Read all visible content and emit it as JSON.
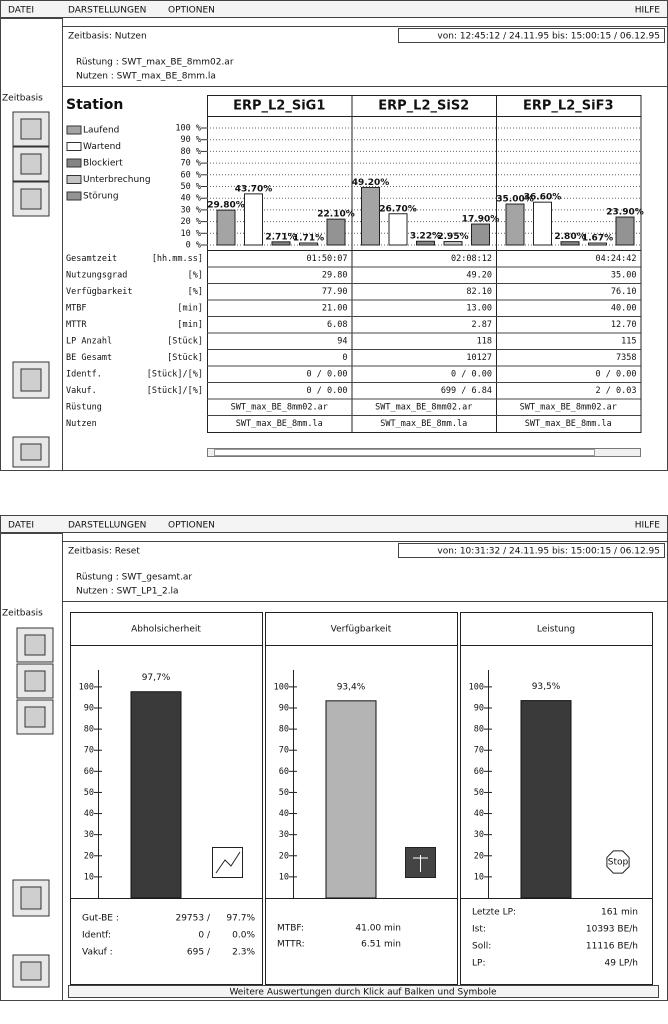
{
  "windows": [
    {
      "menu": [
        "DATEI",
        "DARSTELLUNGEN",
        "OPTIONEN"
      ],
      "help": "HILFE",
      "sidebar_label": "Zeitbasis",
      "zeitbasis": "Zeitbasis: Nutzen",
      "range": "von: 12:45:12 / 24.11.95   bis: 15:00:15 / 06.12.95",
      "ruestung": "Rüstung :  SWT_max_BE_8mm02.ar",
      "nutzen": "Nutzen  :  SWT_max_BE_8mm.la",
      "station_header": "Station",
      "table": {
        "rows": [
          [
            "Gesamtzeit",
            "[hh.mm.ss]",
            "01:50:07",
            "02:08:12",
            "04:24:42"
          ],
          [
            "Nutzungsgrad",
            "[%]",
            "29.80",
            "49.20",
            "35.00"
          ],
          [
            "Verfügbarkeit",
            "[%]",
            "77.90",
            "82.10",
            "76.10"
          ],
          [
            "MTBF",
            "[min]",
            "21.00",
            "13.00",
            "40.00"
          ],
          [
            "MTTR",
            "[min]",
            "6.08",
            "2.87",
            "12.70"
          ],
          [
            "LP Anzahl",
            "[Stück]",
            "94",
            "118",
            "115"
          ],
          [
            "BE Gesamt",
            "[Stück]",
            "0",
            "10127",
            "7358"
          ],
          [
            "Identf.",
            "[Stück]/[%]",
            "0 / 0.00",
            "0 / 0.00",
            "0 / 0.00"
          ],
          [
            "Vakuf.",
            "[Stück]/[%]",
            "0 / 0.00",
            "699 / 6.84",
            "2 / 0.03"
          ],
          [
            "Rüstung",
            "",
            "SWT_max_BE_8mm02.ar",
            "SWT_max_BE_8mm02.ar",
            "SWT_max_BE_8mm02.ar"
          ],
          [
            "Nutzen",
            "",
            "SWT_max_BE_8mm.la",
            "SWT_max_BE_8mm.la",
            "SWT_max_BE_8mm.la"
          ]
        ]
      }
    },
    {
      "menu": [
        "DATEI",
        "DARSTELLUNGEN",
        "OPTIONEN"
      ],
      "help": "HILFE",
      "sidebar_label": "Zeitbasis",
      "zeitbasis": "Zeitbasis: Reset",
      "range": "von: 10:31:32 / 24.11.95   bis: 15:00:15 / 06.12.95",
      "ruestung": "Rüstung :  SWT_gesamt.ar",
      "nutzen": "Nutzen  :  SWT_LP1_2.la",
      "panels": [
        {
          "stats": [
            [
              "Gut-BE :",
              "29753 /",
              "97.7%"
            ],
            [
              "Identf:",
              "0 /",
              "0.0%"
            ],
            [
              "Vakuf :",
              "695 /",
              "2.3%"
            ]
          ]
        },
        {
          "stats": [
            [
              "MTBF:",
              "41.00 min"
            ],
            [
              "MTTR:",
              "6.51 min"
            ]
          ]
        },
        {
          "stats": [
            [
              "Letzte LP:",
              "161 min"
            ],
            [
              "Ist:",
              "10393 BE/h"
            ],
            [
              "Soll:",
              "11116 BE/h"
            ],
            [
              "LP:",
              "49 LP/h"
            ]
          ],
          "stop_sign": "Stop"
        }
      ],
      "footer": "Weitere Auswertungen durch Klick auf Balken und Symbole"
    }
  ],
  "chart_data": [
    {
      "type": "grouped-bar",
      "categories": [
        "ERP_L2_SiG1",
        "ERP_L2_SiS2",
        "ERP_L2_SiF3"
      ],
      "series": [
        {
          "name": "Laufend",
          "color": "#a4a4a4",
          "values": [
            29.8,
            49.2,
            35.0
          ],
          "value_labels": [
            "29.80%",
            "49.20%",
            "35.00%"
          ]
        },
        {
          "name": "Wartend",
          "color": "#ffffff",
          "values": [
            43.7,
            26.7,
            36.6
          ],
          "value_labels": [
            "43.70%",
            "26.70%",
            "36.60%"
          ]
        },
        {
          "name": "Blockiert",
          "color": "#858585",
          "values": [
            2.71,
            3.22,
            2.8
          ],
          "value_labels": [
            "2.71%",
            "3.22%",
            "2.80%"
          ]
        },
        {
          "name": "Unterbrechung",
          "color": "#c4c4c4",
          "values": [
            1.71,
            2.95,
            1.67
          ],
          "value_labels": [
            "1.71%",
            "2.95%",
            "1.67%"
          ]
        },
        {
          "name": "Störung",
          "color": "#939393",
          "values": [
            22.1,
            17.9,
            23.9
          ],
          "value_labels": [
            "22.10%",
            "17.90%",
            "23.90%"
          ]
        }
      ],
      "ylim": [
        0,
        100
      ],
      "yticks": [
        {
          "value": 0,
          "label": "0 %"
        },
        {
          "value": 10,
          "label": "10 %"
        },
        {
          "value": 20,
          "label": "20 %"
        },
        {
          "value": 30,
          "label": "30 %"
        },
        {
          "value": 40,
          "label": "40 %"
        },
        {
          "value": 50,
          "label": "50 %"
        },
        {
          "value": 60,
          "label": "60 %"
        },
        {
          "value": 70,
          "label": "70 %"
        },
        {
          "value": 80,
          "label": "80 %"
        },
        {
          "value": 90,
          "label": "90 %"
        },
        {
          "value": 100,
          "label": "100 %"
        }
      ],
      "grid": true
    },
    {
      "type": "bar",
      "title": "Abholsicherheit",
      "values": [
        97.7
      ],
      "value_labels": [
        "97,7%"
      ],
      "color": "#3a3a3a",
      "ylim": [
        0,
        108
      ],
      "yticks": [
        10,
        20,
        30,
        40,
        50,
        60,
        70,
        80,
        90,
        100
      ]
    },
    {
      "type": "bar",
      "title": "Verfügbarkeit",
      "values": [
        93.4
      ],
      "value_labels": [
        "93,4%"
      ],
      "color": "#b4b4b4",
      "ylim": [
        0,
        108
      ],
      "yticks": [
        10,
        20,
        30,
        40,
        50,
        60,
        70,
        80,
        90,
        100
      ]
    },
    {
      "type": "bar",
      "title": "Leistung",
      "values": [
        93.5
      ],
      "value_labels": [
        "93,5%"
      ],
      "color": "#3a3a3a",
      "ylim": [
        0,
        108
      ],
      "yticks": [
        10,
        20,
        30,
        40,
        50,
        60,
        70,
        80,
        90,
        100
      ]
    }
  ]
}
